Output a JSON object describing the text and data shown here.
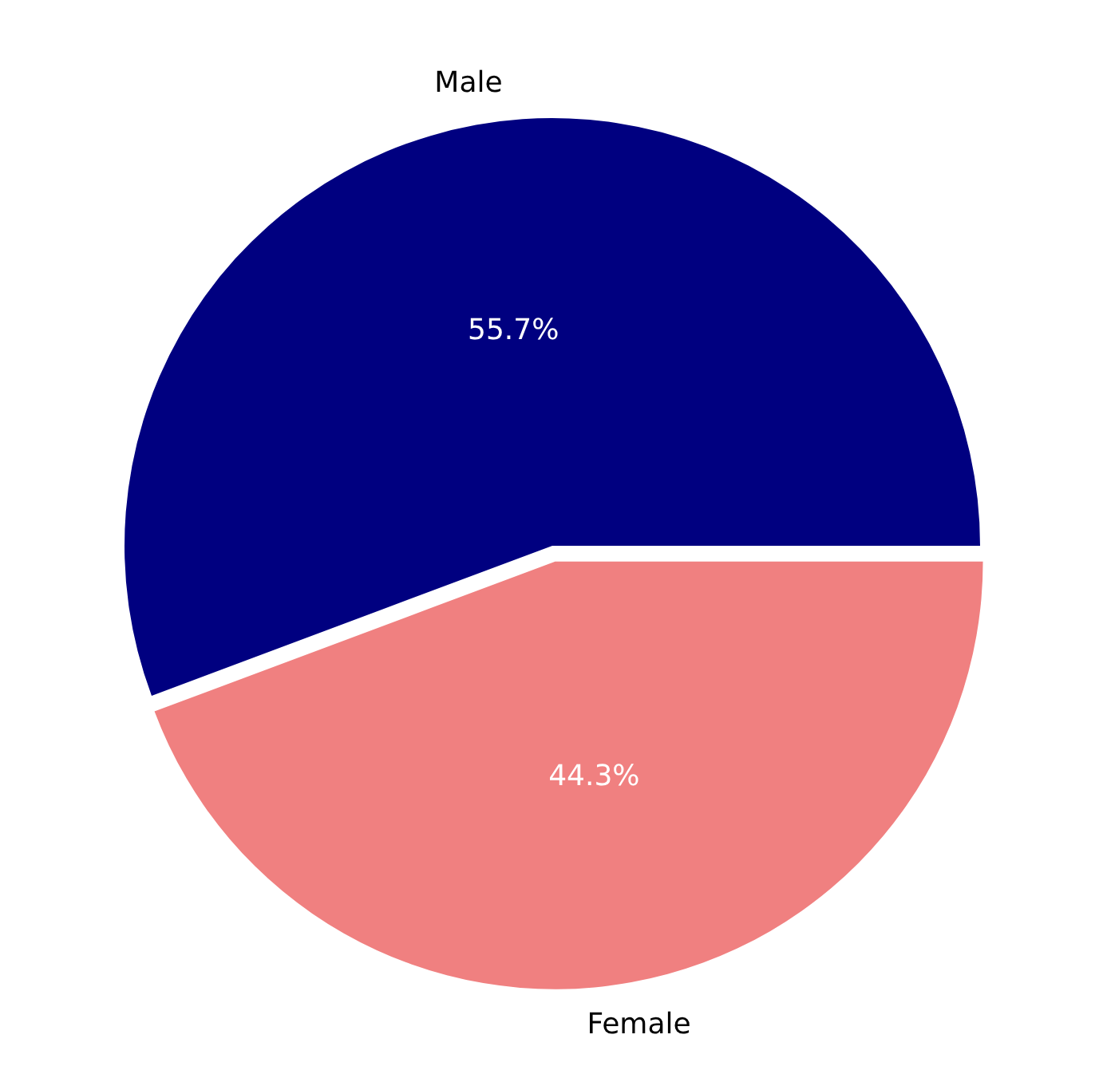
{
  "chart_data": {
    "type": "pie",
    "categories": [
      "Male",
      "Female"
    ],
    "values": [
      55.7,
      44.3
    ],
    "colors": [
      "#000080",
      "#f08080"
    ],
    "value_labels": [
      "55.7%",
      "44.3%"
    ]
  }
}
